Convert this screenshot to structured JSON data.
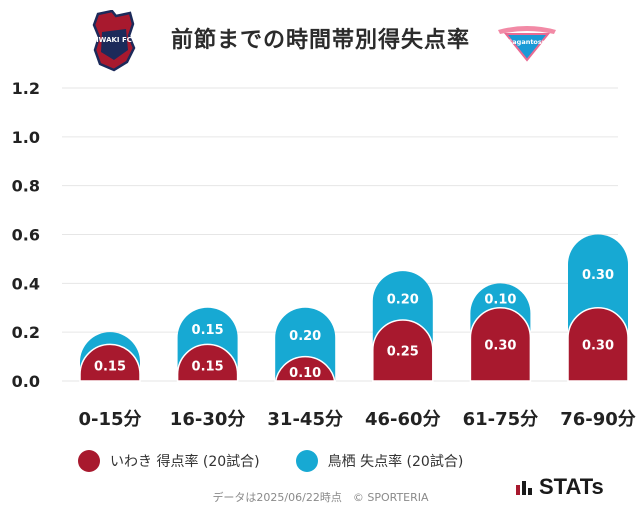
{
  "header": {
    "title": "前節までの時間帯別得失点率",
    "home_logo_text": "IWAKI FC",
    "away_logo_text": "Sagantosu"
  },
  "colors": {
    "home": "#a8192e",
    "away": "#17a9d3",
    "grid": "#e6e6e6"
  },
  "chart_data": {
    "type": "bar",
    "stacked": true,
    "title": "前節までの時間帯別得失点率",
    "categories": [
      "0-15分",
      "16-30分",
      "31-45分",
      "46-60分",
      "61-75分",
      "76-90分"
    ],
    "series": [
      {
        "name": "いわき 得点率 (20試合)",
        "values": [
          0.15,
          0.15,
          0.1,
          0.25,
          0.3,
          0.3
        ]
      },
      {
        "name": "鳥栖 失点率 (20試合)",
        "values": [
          0.05,
          0.15,
          0.2,
          0.2,
          0.1,
          0.3
        ]
      }
    ],
    "data_labels": [
      [
        "0.15",
        "0.15",
        "0.10",
        "0.25",
        "0.30",
        "0.30"
      ],
      [
        "",
        "0.15",
        "0.20",
        "0.20",
        "0.10",
        "0.30"
      ]
    ],
    "ylim": [
      0,
      1.2
    ],
    "yticks": [
      "0.0",
      "0.2",
      "0.4",
      "0.6",
      "0.8",
      "1.0",
      "1.2"
    ],
    "grid": true,
    "legend": "bottom-left"
  },
  "legend": {
    "home_label": "いわき 得点率 (20試合)",
    "away_label": "鳥栖 失点率 (20試合)"
  },
  "footer": {
    "note": "データは2025/06/22時点　© SPORTERIA",
    "brand": "STATs"
  }
}
